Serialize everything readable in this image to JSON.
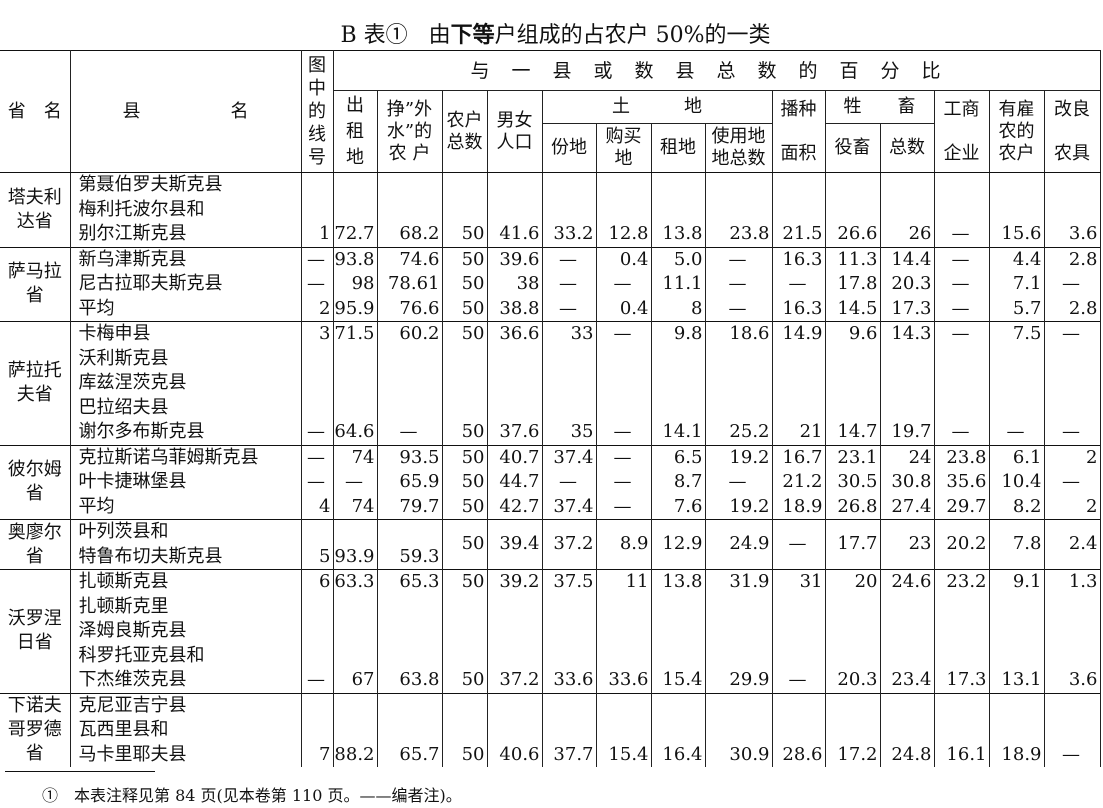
{
  "title": {
    "prefix": "B 表①",
    "main_a": "由",
    "main_bold": "下等",
    "main_b": "户组成的占农户 50%的一类"
  },
  "header": {
    "province": "省　名",
    "county": "县　　　　　名",
    "line_no": "图\n中\n的\n线\n号",
    "group_label": "与一县或数县总数的百分比",
    "rented_out": "出\n租\n地",
    "side_earnings": "挣”外\n水”的\n农 户",
    "households": "农户\n总数",
    "population": "男女\n人口",
    "land": "土　　　地",
    "allotment": "份地",
    "purchased": "购买\n地",
    "leased": "租地",
    "land_used": "使用地\n地总数",
    "sown_area": "播种\n\n面积",
    "livestock": "牲　　畜",
    "draught": "役畜",
    "livestock_total": "总数",
    "enterprises": "工商\n\n企业",
    "hiring": "有雇\n农的\n农户",
    "implements": "改良\n\n农具"
  },
  "groups": [
    {
      "province": "塔夫利达省",
      "lines": [
        {
          "county": "第聂伯罗夫斯克县",
          "values": []
        },
        {
          "county": "梅利托波尔县和",
          "values": []
        },
        {
          "county": "别尔江斯克县",
          "values": [
            "1",
            "72.7",
            "68.2",
            "50",
            "41.6",
            "33.2",
            "12.8",
            "13.8",
            "23.8",
            "21.5",
            "26.6",
            "26",
            "—",
            "15.6",
            "3.6"
          ]
        }
      ]
    },
    {
      "province": "萨马拉省",
      "lines": [
        {
          "county": "新乌津斯克县",
          "values": [
            "—",
            "93.8",
            "74.6",
            "50",
            "39.6",
            "—",
            "0.4",
            "5.0",
            "—",
            "16.3",
            "11.3",
            "14.4",
            "—",
            "4.4",
            "2.8"
          ]
        },
        {
          "county": "尼古拉耶夫斯克县",
          "values": [
            "—",
            "98",
            "78.61",
            "50",
            "38",
            "—",
            "—",
            "11.1",
            "—",
            "—",
            "17.8",
            "20.3",
            "—",
            "7.1",
            "—"
          ]
        },
        {
          "county": "平均",
          "values": [
            "2",
            "95.9",
            "76.6",
            "50",
            "38.8",
            "—",
            "0.4",
            "8",
            "—",
            "16.3",
            "14.5",
            "17.3",
            "—",
            "5.7",
            "2.8"
          ]
        }
      ]
    },
    {
      "province": "萨拉托夫省",
      "lines": [
        {
          "county": "卡梅申县",
          "values": [
            "3",
            "71.5",
            "60.2",
            "50",
            "36.6",
            "33",
            "—",
            "9.8",
            "18.6",
            "14.9",
            "9.6",
            "14.3",
            "—",
            "7.5",
            "—"
          ]
        },
        {
          "county": "沃利斯克县",
          "values": []
        },
        {
          "county": "库兹涅茨克县",
          "values": []
        },
        {
          "county": "巴拉绍夫县",
          "values": []
        },
        {
          "county": "谢尔多布斯克县",
          "values": [
            "—",
            "64.6",
            "—",
            "50",
            "37.6",
            "35",
            "—",
            "14.1",
            "25.2",
            "21",
            "14.7",
            "19.7",
            "—",
            "—",
            "—"
          ]
        }
      ]
    },
    {
      "province": "彼尔姆省",
      "lines": [
        {
          "county": "克拉斯诺乌菲姆斯克县",
          "values": [
            "—",
            "74",
            "93.5",
            "50",
            "40.7",
            "37.4",
            "—",
            "6.5",
            "19.2",
            "16.7",
            "23.1",
            "24",
            "23.8",
            "6.1",
            "2"
          ]
        },
        {
          "county": "叶卡捷琳堡县",
          "values": [
            "—",
            "—",
            "65.9",
            "50",
            "44.7",
            "—",
            "—",
            "8.7",
            "—",
            "21.2",
            "30.5",
            "30.8",
            "35.6",
            "10.4",
            "—"
          ]
        },
        {
          "county": "平均",
          "values": [
            "4",
            "74",
            "79.7",
            "50",
            "42.7",
            "37.4",
            "—",
            "7.6",
            "19.2",
            "18.9",
            "26.8",
            "27.4",
            "29.7",
            "8.2",
            "2"
          ]
        }
      ]
    },
    {
      "province": "奥廖尔省",
      "lines": [
        {
          "county": "叶列茨县和",
          "values": [
            "",
            "",
            "",
            "50",
            "39.4",
            "37.2",
            "8.9",
            "12.9",
            "24.9",
            "—",
            "17.7",
            "23",
            "20.2",
            "7.8",
            "2.4"
          ]
        },
        {
          "county": "特鲁布切夫斯克县",
          "values": [
            "5",
            "93.9",
            "59.3",
            null,
            null,
            null,
            null,
            null,
            null,
            null,
            null,
            null,
            null,
            null,
            null
          ]
        }
      ]
    },
    {
      "province": "沃罗涅日省",
      "lines": [
        {
          "county": "扎顿斯克县",
          "values": [
            "6",
            "63.3",
            "65.3",
            "50",
            "39.2",
            "37.5",
            "11",
            "13.8",
            "31.9",
            "31",
            "20",
            "24.6",
            "23.2",
            "9.1",
            "1.3"
          ]
        },
        {
          "county": "扎顿斯克里",
          "values": []
        },
        {
          "county": "泽姆良斯克县",
          "values": []
        },
        {
          "county": "科罗托亚克县和",
          "values": []
        },
        {
          "county": "下杰维茨克县",
          "values": [
            "—",
            "67",
            "63.8",
            "50",
            "37.2",
            "33.6",
            "33.6",
            "15.4",
            "29.9",
            "—",
            "20.3",
            "23.4",
            "17.3",
            "13.1",
            "3.6"
          ]
        }
      ]
    },
    {
      "province": "下诺夫哥罗德省",
      "lines": [
        {
          "county": "克尼亚吉宁县",
          "values": []
        },
        {
          "county": "瓦西里县和",
          "values": []
        },
        {
          "county": "马卡里耶夫县",
          "values": [
            "7",
            "88.2",
            "65.7",
            "50",
            "40.6",
            "37.7",
            "15.4",
            "16.4",
            "30.9",
            "28.6",
            "17.2",
            "24.8",
            "16.1",
            "18.9",
            "—"
          ]
        }
      ]
    }
  ],
  "footnote": "①　本表注释见第 84 页(见本卷第 110 页。——编者注)。"
}
